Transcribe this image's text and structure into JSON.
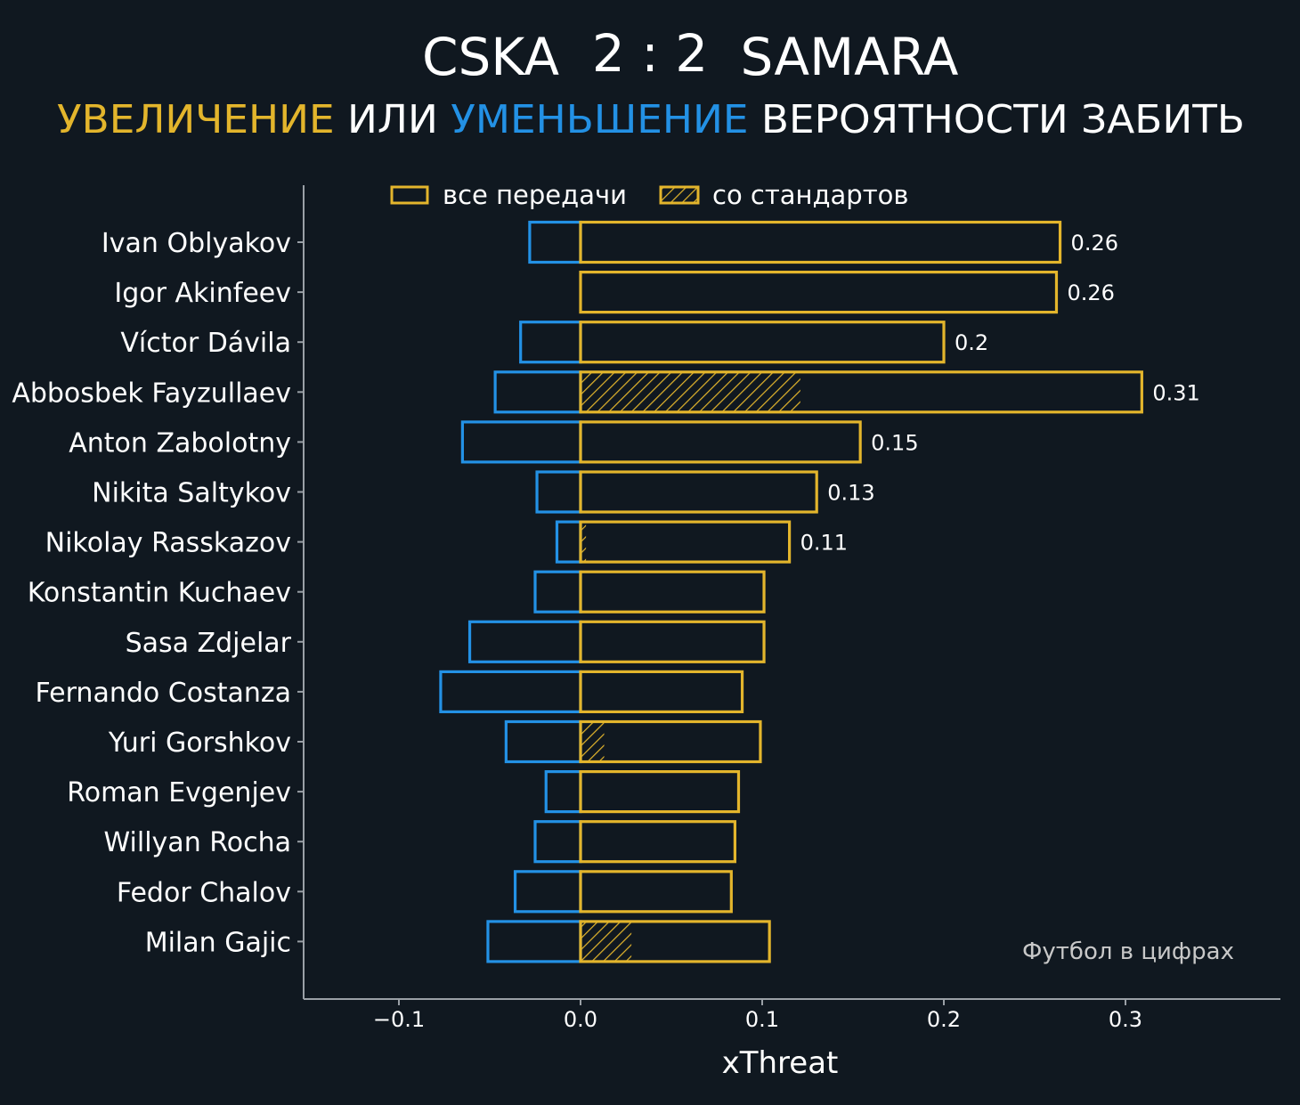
{
  "header": {
    "title_left": "CSKA",
    "title_score": "2 : 2",
    "title_right": "SAMARA",
    "subtitle_part1": "УВЕЛИЧЕНИЕ",
    "subtitle_part2": " ИЛИ ",
    "subtitle_part3": "УМЕНЬШЕНИЕ",
    "subtitle_part4": " ВЕРОЯТНОСТИ ЗАБИТЬ"
  },
  "colors": {
    "background": "#101820",
    "increase": "#e3b52c",
    "decrease": "#2391e5",
    "text": "#ffffff",
    "axis": "#9aa0a6"
  },
  "legend": {
    "all_passes": "все передачи",
    "set_pieces": "со стандартов"
  },
  "watermark": "Футбол в цифрах",
  "chart_data": {
    "type": "bar",
    "orientation": "horizontal",
    "xlabel": "xThreat",
    "xlim": [
      -0.153,
      0.385
    ],
    "xticks": [
      -0.1,
      0.0,
      0.1,
      0.2,
      0.3
    ],
    "xtick_labels": [
      "−0.1",
      "0.0",
      "0.1",
      "0.2",
      "0.3"
    ],
    "legend_position": "top",
    "categories": [
      "Ivan Oblyakov",
      "Igor Akinfeev",
      "Víctor Dávila",
      "Abbosbek Fayzullaev",
      "Anton Zabolotny",
      "Nikita Saltykov",
      "Nikolay Rasskazov",
      "Konstantin Kuchaev",
      "Sasa Zdjelar",
      "Fernando Costanza",
      "Yuri Gorshkov",
      "Roman Evgenjev",
      "Willyan Rocha",
      "Fedor Chalov",
      "Milan Gajic"
    ],
    "series": [
      {
        "name": "все передачи",
        "role": "positive",
        "values": [
          0.264,
          0.262,
          0.2,
          0.309,
          0.154,
          0.13,
          0.115,
          0.101,
          0.101,
          0.089,
          0.099,
          0.087,
          0.085,
          0.083,
          0.104
        ]
      },
      {
        "role": "negative",
        "values": [
          -0.028,
          0.0,
          -0.033,
          -0.047,
          -0.065,
          -0.024,
          -0.013,
          -0.025,
          -0.061,
          -0.077,
          -0.041,
          -0.019,
          -0.025,
          -0.036,
          -0.051
        ]
      },
      {
        "name": "со стандартов",
        "role": "set_pieces",
        "values": [
          0,
          0,
          0,
          0.121,
          0,
          0,
          0.003,
          0,
          0,
          0,
          0.013,
          0,
          0,
          0,
          0.028
        ]
      }
    ],
    "data_labels": [
      "0.26",
      "0.26",
      "0.2",
      "0.31",
      "0.15",
      "0.13",
      "0.11",
      "",
      "",
      "",
      "",
      "",
      "",
      "",
      ""
    ]
  }
}
